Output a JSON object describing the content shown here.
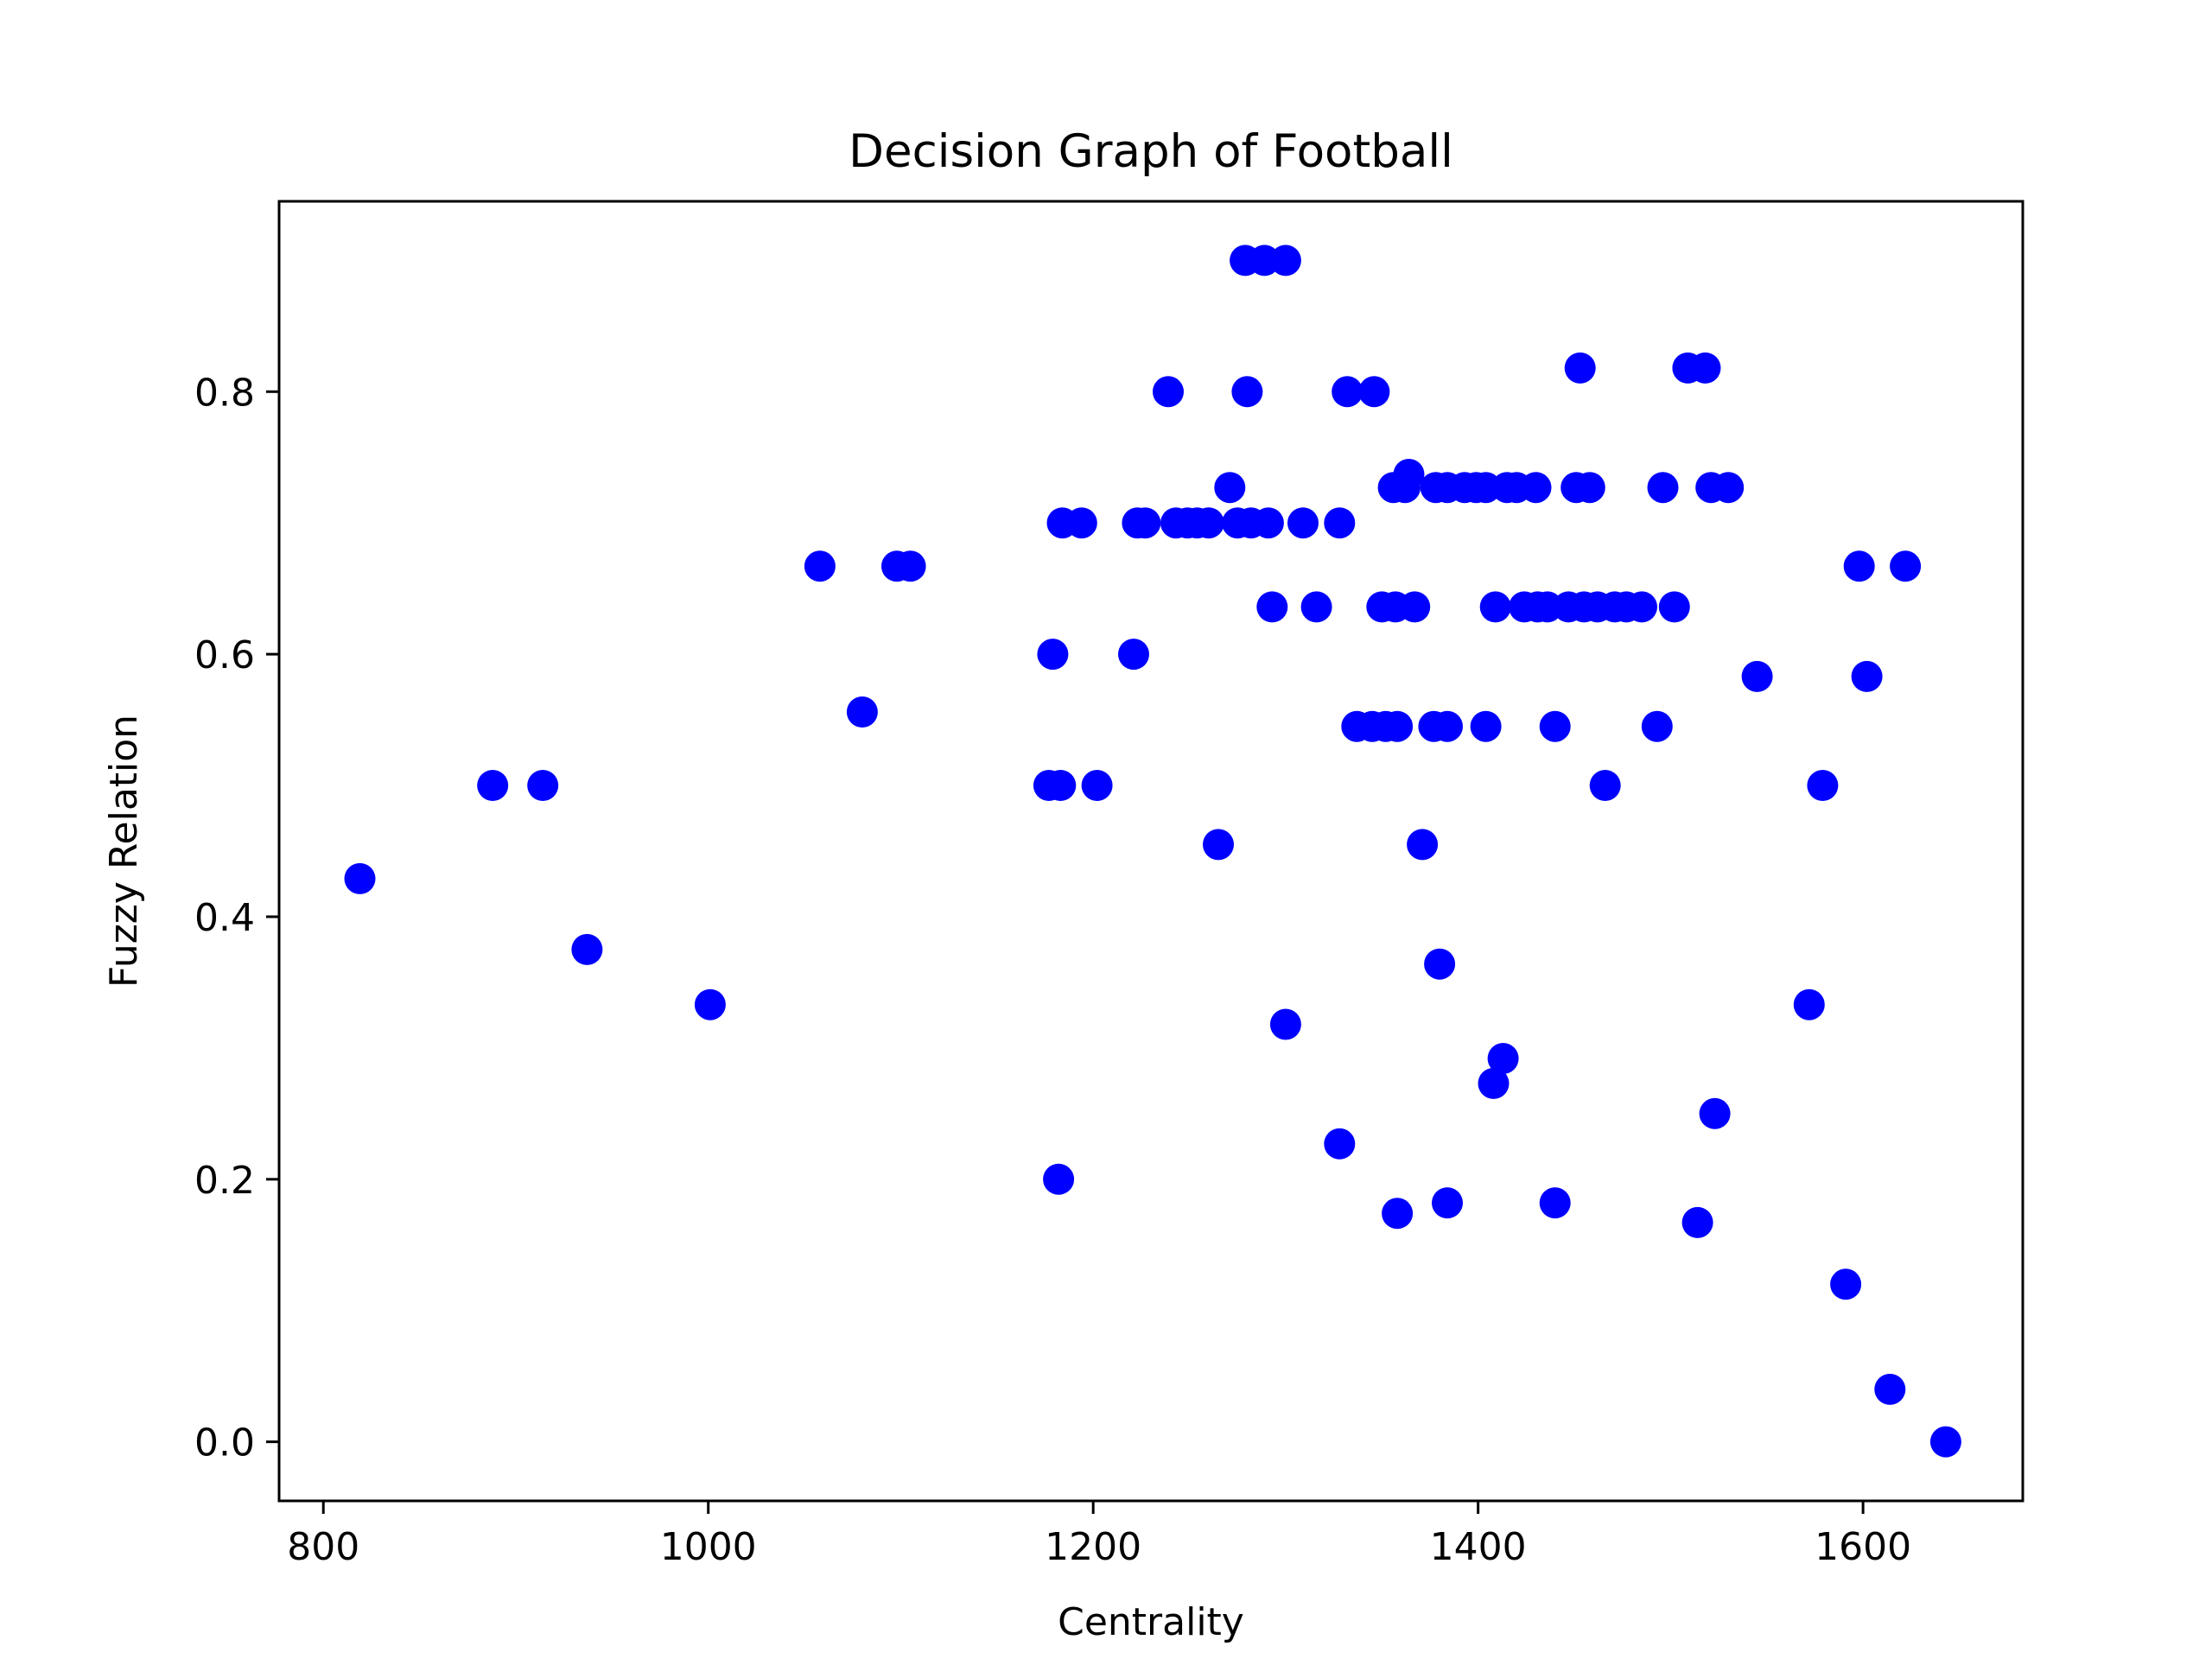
{
  "chart_data": {
    "type": "scatter",
    "title": "Decision Graph of Football",
    "xlabel": "Centrality",
    "ylabel": "Fuzzy Relation",
    "xlim": [
      777,
      1683
    ],
    "ylim": [
      -0.045,
      0.945
    ],
    "xticks": [
      800,
      1000,
      1200,
      1400,
      1600
    ],
    "yticks": [
      0.0,
      0.2,
      0.4,
      0.6,
      0.8
    ],
    "xtick_labels": [
      "800",
      "1000",
      "1200",
      "1400",
      "1600"
    ],
    "ytick_labels": [
      "0.0",
      "0.2",
      "0.4",
      "0.6",
      "0.8"
    ],
    "grid": false,
    "color": "#0000ff",
    "series": [
      {
        "points": [
          [
            819,
            0.429
          ],
          [
            888,
            0.5
          ],
          [
            914,
            0.5
          ],
          [
            937,
            0.375
          ],
          [
            1001,
            0.333
          ],
          [
            1058,
            0.667
          ],
          [
            1080,
            0.556
          ],
          [
            1098,
            0.667
          ],
          [
            1105,
            0.667
          ],
          [
            1177,
            0.5
          ],
          [
            1183,
            0.5
          ],
          [
            1179,
            0.6
          ],
          [
            1184,
            0.7
          ],
          [
            1194,
            0.7
          ],
          [
            1202,
            0.5
          ],
          [
            1182,
            0.2
          ],
          [
            1221,
            0.6
          ],
          [
            1223,
            0.7
          ],
          [
            1227,
            0.7
          ],
          [
            1239,
            0.8
          ],
          [
            1243,
            0.7
          ],
          [
            1249,
            0.7
          ],
          [
            1254,
            0.7
          ],
          [
            1260,
            0.7
          ],
          [
            1265,
            0.455
          ],
          [
            1271,
            0.727
          ],
          [
            1275,
            0.7
          ],
          [
            1279,
            0.9
          ],
          [
            1280,
            0.8
          ],
          [
            1282,
            0.7
          ],
          [
            1289,
            0.9
          ],
          [
            1291,
            0.7
          ],
          [
            1293,
            0.636
          ],
          [
            1300,
            0.9
          ],
          [
            1300,
            0.318
          ],
          [
            1309,
            0.7
          ],
          [
            1316,
            0.636
          ],
          [
            1328,
            0.7
          ],
          [
            1328,
            0.227
          ],
          [
            1332,
            0.8
          ],
          [
            1337,
            0.545
          ],
          [
            1346,
            0.8
          ],
          [
            1345,
            0.545
          ],
          [
            1350,
            0.636
          ],
          [
            1352,
            0.545
          ],
          [
            1356,
            0.727
          ],
          [
            1357,
            0.636
          ],
          [
            1358,
            0.545
          ],
          [
            1358,
            0.174
          ],
          [
            1362,
            0.727
          ],
          [
            1364,
            0.737
          ],
          [
            1367,
            0.636
          ],
          [
            1371,
            0.455
          ],
          [
            1378,
            0.727
          ],
          [
            1377,
            0.545
          ],
          [
            1380,
            0.364
          ],
          [
            1384,
            0.545
          ],
          [
            1384,
            0.727
          ],
          [
            1384,
            0.182
          ],
          [
            1393,
            0.727
          ],
          [
            1399,
            0.727
          ],
          [
            1404,
            0.545
          ],
          [
            1404,
            0.727
          ],
          [
            1408,
            0.273
          ],
          [
            1409,
            0.636
          ],
          [
            1413,
            0.292
          ],
          [
            1415,
            0.727
          ],
          [
            1420,
            0.727
          ],
          [
            1424,
            0.636
          ],
          [
            1430,
            0.727
          ],
          [
            1431,
            0.636
          ],
          [
            1436,
            0.636
          ],
          [
            1440,
            0.545
          ],
          [
            1440,
            0.182
          ],
          [
            1447,
            0.636
          ],
          [
            1451,
            0.727
          ],
          [
            1453,
            0.818
          ],
          [
            1455,
            0.636
          ],
          [
            1458,
            0.727
          ],
          [
            1462,
            0.636
          ],
          [
            1466,
            0.5
          ],
          [
            1471,
            0.636
          ],
          [
            1477,
            0.636
          ],
          [
            1485,
            0.636
          ],
          [
            1493,
            0.545
          ],
          [
            1496,
            0.727
          ],
          [
            1502,
            0.636
          ],
          [
            1509,
            0.818
          ],
          [
            1514,
            0.167
          ],
          [
            1518,
            0.818
          ],
          [
            1521,
            0.727
          ],
          [
            1523,
            0.25
          ],
          [
            1530,
            0.727
          ],
          [
            1545,
            0.583
          ],
          [
            1572,
            0.333
          ],
          [
            1579,
            0.5
          ],
          [
            1591,
            0.12
          ],
          [
            1598,
            0.667
          ],
          [
            1602,
            0.583
          ],
          [
            1614,
            0.04
          ],
          [
            1622,
            0.667
          ],
          [
            1643,
            0.0
          ]
        ]
      }
    ]
  }
}
